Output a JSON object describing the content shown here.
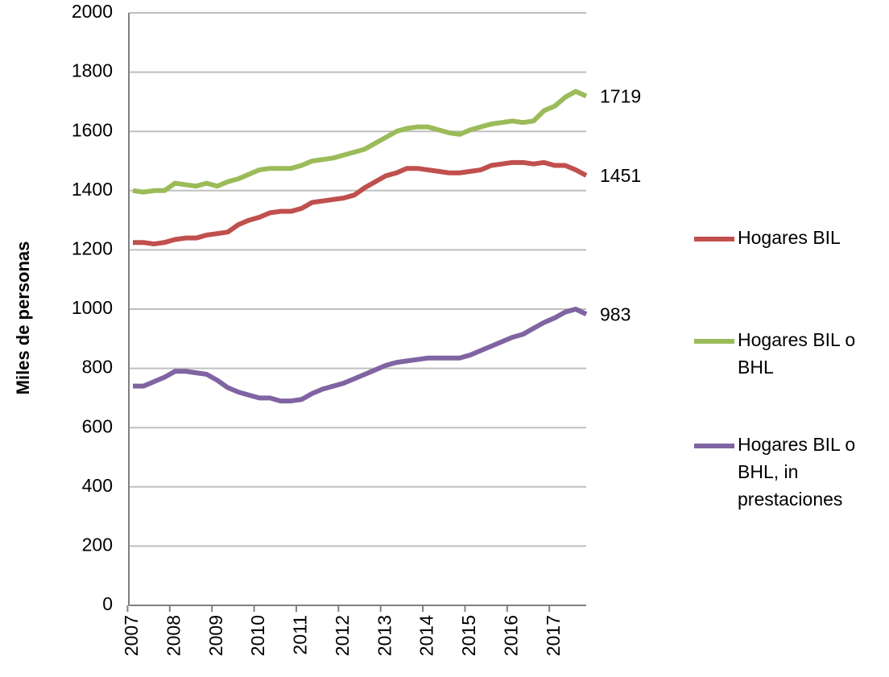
{
  "chart_data": {
    "type": "line",
    "y_label": "Miles de personas",
    "categories": [
      "2007",
      null,
      null,
      null,
      "2008",
      null,
      null,
      null,
      "2009",
      null,
      null,
      null,
      "2010",
      null,
      null,
      null,
      "2011",
      null,
      null,
      null,
      "2012",
      null,
      null,
      null,
      "2013",
      null,
      null,
      null,
      "2014",
      null,
      null,
      null,
      "2015",
      null,
      null,
      null,
      "2016",
      null,
      null,
      null,
      "2017",
      null,
      null,
      null
    ],
    "series": [
      {
        "name": "Hogares BIL",
        "color": "#c0504d",
        "values": [
          1225,
          1225,
          1220,
          1225,
          1235,
          1240,
          1240,
          1250,
          1255,
          1260,
          1285,
          1300,
          1310,
          1325,
          1330,
          1330,
          1340,
          1360,
          1365,
          1370,
          1375,
          1385,
          1410,
          1430,
          1450,
          1460,
          1475,
          1475,
          1470,
          1465,
          1460,
          1460,
          1465,
          1470,
          1485,
          1490,
          1495,
          1495,
          1490,
          1495,
          1485,
          1485,
          1470,
          1451
        ]
      },
      {
        "name": "Hogares BIL o BHL",
        "color": "#9bbb59",
        "values": [
          1400,
          1395,
          1400,
          1400,
          1425,
          1420,
          1415,
          1425,
          1415,
          1430,
          1440,
          1455,
          1470,
          1475,
          1475,
          1475,
          1485,
          1500,
          1505,
          1510,
          1520,
          1530,
          1540,
          1560,
          1580,
          1600,
          1610,
          1615,
          1615,
          1605,
          1595,
          1590,
          1605,
          1615,
          1625,
          1630,
          1635,
          1630,
          1635,
          1670,
          1685,
          1715,
          1735,
          1719
        ]
      },
      {
        "name": "Hogares BIL o BHL, in prestaciones",
        "color": "#8064a2",
        "values": [
          740,
          740,
          755,
          770,
          790,
          790,
          785,
          780,
          760,
          735,
          720,
          710,
          700,
          700,
          690,
          690,
          695,
          715,
          730,
          740,
          750,
          765,
          780,
          795,
          810,
          820,
          825,
          830,
          835,
          835,
          835,
          835,
          845,
          860,
          875,
          890,
          905,
          915,
          935,
          955,
          970,
          990,
          1000,
          983
        ]
      }
    ],
    "ylim": [
      0,
      2000
    ],
    "yticks": [
      0,
      200,
      400,
      600,
      800,
      1000,
      1200,
      1400,
      1600,
      1800,
      2000
    ],
    "grid": true,
    "legend": "right"
  }
}
